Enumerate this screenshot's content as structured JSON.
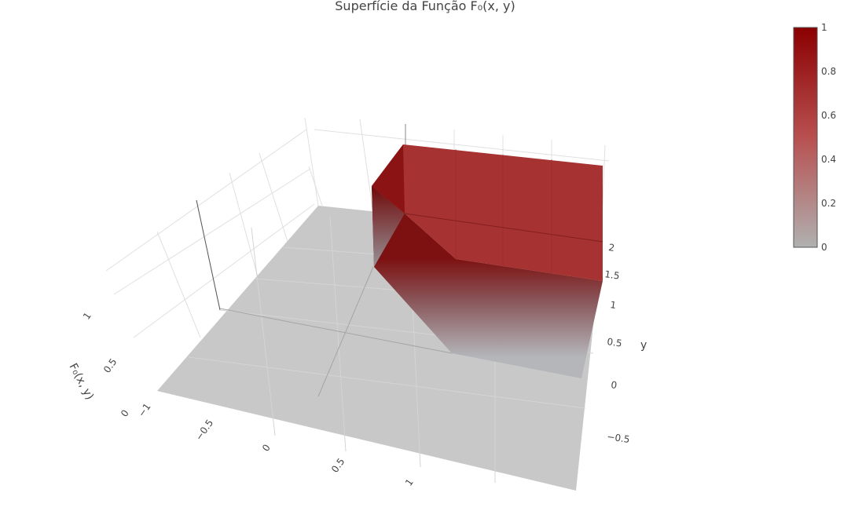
{
  "chart_data": {
    "type": "surface",
    "title": "Superfície da Função F₀(x, y)",
    "xaxis": {
      "label": "",
      "ticks": [
        "−1",
        "−0.5",
        "0",
        "0.5",
        "1"
      ],
      "range": [
        -1,
        1.5
      ]
    },
    "yaxis": {
      "label": "y",
      "ticks": [
        "−0.5",
        "0",
        "0.5",
        "1",
        "1.5",
        "2"
      ],
      "range": [
        -0.5,
        2
      ]
    },
    "zaxis": {
      "label": "F₀(x, y)",
      "ticks": [
        "0",
        "0.5",
        "1"
      ],
      "range": [
        0,
        1
      ]
    },
    "colorbar": {
      "ticks": [
        "0",
        "0.2",
        "0.4",
        "0.6",
        "0.8",
        "1"
      ],
      "range": [
        0,
        1
      ],
      "colorscale": [
        "#b0b0b0",
        "#8b0000"
      ]
    },
    "function_regions": [
      {
        "region": "x < 0 or y < 0",
        "value": 0
      },
      {
        "region": "0 ≤ x ≤ 1, 0 ≤ y ≤ 1",
        "value": "transition 0 → 1"
      },
      {
        "region": "x > 1 and y > 1",
        "value": 1
      }
    ],
    "grid": true,
    "legend": "colorbar-right"
  }
}
